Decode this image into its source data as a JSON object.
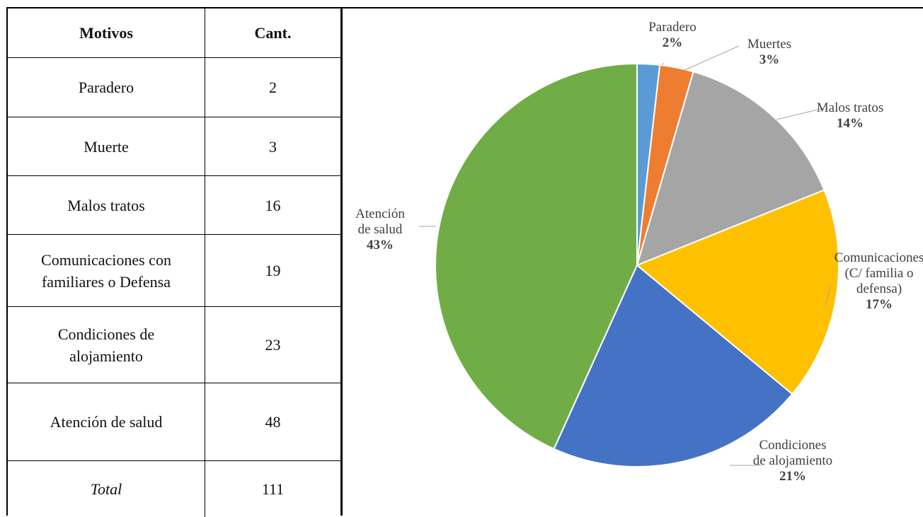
{
  "table": {
    "headers": [
      "Motivos",
      "Cant."
    ],
    "rows": [
      {
        "motivo": "Paradero",
        "cant": "2"
      },
      {
        "motivo": "Muerte",
        "cant": "3"
      },
      {
        "motivo": "Malos tratos",
        "cant": "16"
      },
      {
        "motivo": "Comunicaciones con familiares o Defensa",
        "cant": "19"
      },
      {
        "motivo": "Condiciones de alojamiento",
        "cant": "23"
      },
      {
        "motivo": "Atención de salud",
        "cant": "48"
      }
    ],
    "total": {
      "label": "Total",
      "cant": "111"
    }
  },
  "chart_data": {
    "type": "pie",
    "title": "",
    "start_angle_deg": 0,
    "direction": "clockwise",
    "slices": [
      {
        "label": [
          "Paradero"
        ],
        "value": 2,
        "pct_label": "2%",
        "color": "#5b9bd5"
      },
      {
        "label": [
          "Muertes"
        ],
        "value": 3,
        "pct_label": "3%",
        "color": "#ed7d31"
      },
      {
        "label": [
          "Malos tratos"
        ],
        "value": 16,
        "pct_label": "14%",
        "color": "#a5a5a5"
      },
      {
        "label": [
          "Comunicaciones",
          "(C/ familia o",
          "defensa)"
        ],
        "value": 19,
        "pct_label": "17%",
        "color": "#ffc000"
      },
      {
        "label": [
          "Condiciones",
          "de alojamiento"
        ],
        "value": 23,
        "pct_label": "21%",
        "color": "#4472c4"
      },
      {
        "label": [
          "Atención",
          "de salud"
        ],
        "value": 48,
        "pct_label": "43%",
        "color": "#70ad47"
      }
    ]
  }
}
